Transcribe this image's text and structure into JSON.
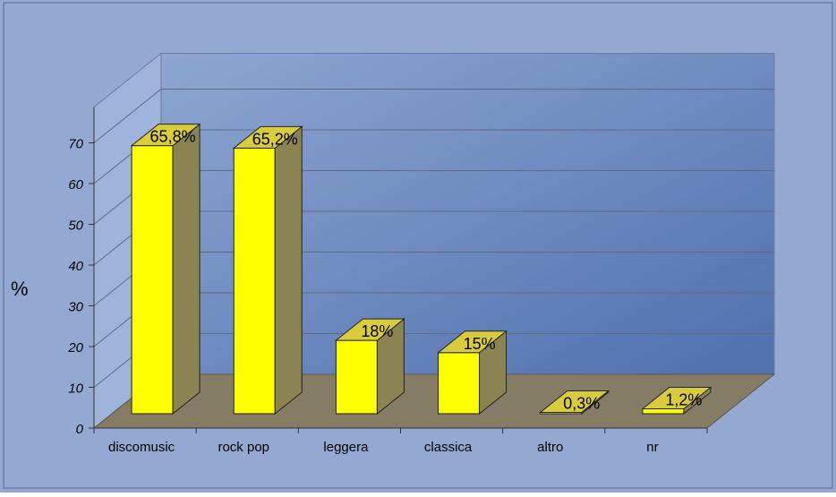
{
  "chart_data": {
    "type": "bar",
    "title": "",
    "xlabel": "",
    "ylabel": "%",
    "ylim": [
      0,
      70
    ],
    "yticks": [
      0,
      10,
      20,
      30,
      40,
      50,
      60,
      70
    ],
    "ytick_labels": [
      "0",
      "10",
      "20",
      "30",
      "40",
      "50",
      "60",
      "70"
    ],
    "categories": [
      "discomusic",
      "rock pop",
      "leggera",
      "classica",
      "altro",
      "nr"
    ],
    "values": [
      65.8,
      65.2,
      18,
      15,
      0.3,
      1.2
    ],
    "data_labels": [
      "65,8%",
      "65,2%",
      "18%",
      "15%",
      "0,3%",
      "1,2%"
    ],
    "grid": true,
    "legend": "none",
    "style": "3d-column"
  },
  "colors": {
    "outer_background": "#94a9d1",
    "back_wall_top": "#8fa6d2",
    "back_wall_bottom": "#4f70ad",
    "side_wall": "#9fb4da",
    "floor": "#857c66",
    "bar_front": "#ffff00",
    "bar_top": "#d8cc3c",
    "bar_side": "#8a8452",
    "axis_text": "#000000"
  }
}
